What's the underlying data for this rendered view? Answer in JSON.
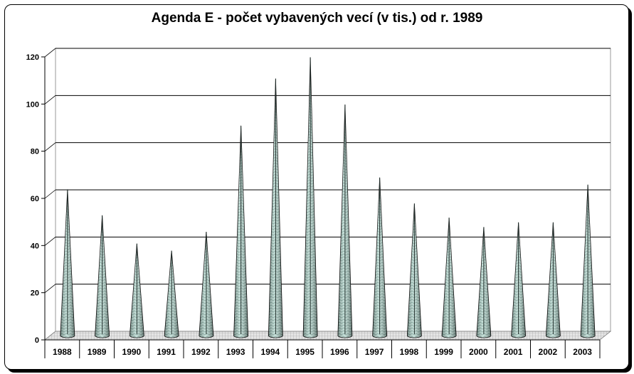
{
  "chart_data": {
    "type": "bar",
    "title": "Agenda E - počet vybavených vecí (v tis.) od r. 1989",
    "xlabel": "",
    "ylabel": "",
    "categories": [
      "1988",
      "1989",
      "1990",
      "1991",
      "1992",
      "1993",
      "1994",
      "1995",
      "1996",
      "1997",
      "1998",
      "1999",
      "2000",
      "2001",
      "2002",
      "2003"
    ],
    "values": [
      62,
      51,
      39,
      36,
      44,
      89,
      109,
      118,
      98,
      67,
      56,
      50,
      46,
      48,
      48,
      64
    ],
    "ylim": [
      0,
      120
    ],
    "yticks": [
      "0",
      "20",
      "40",
      "60",
      "80",
      "100",
      "120"
    ],
    "grid": true,
    "bar_shape": "cone",
    "colors": {
      "bar_fill": "#a9cfc6",
      "bar_dark": "#6f9a8f",
      "bar_stroke": "#000000",
      "floor": "#d8d8d8"
    }
  }
}
